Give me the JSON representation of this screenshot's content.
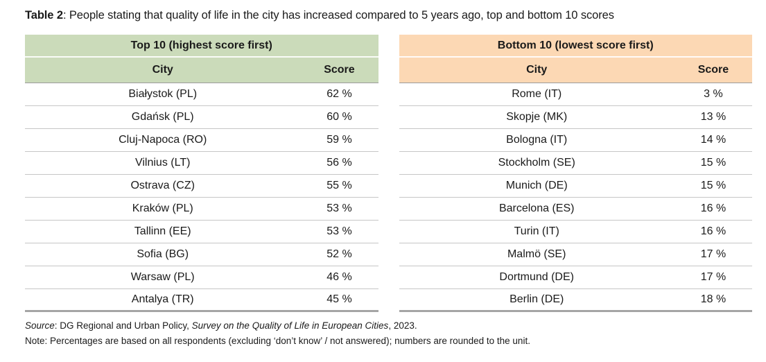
{
  "title": {
    "bold": "Table 2",
    "rest": ": People stating that quality of life in the city has increased compared to 5 years ago, top and bottom 10 scores"
  },
  "colors": {
    "top10_header": "#cbdbba",
    "bottom10_header": "#fcd8b4",
    "row_separator": "#c6c6c6",
    "table_bottom_border": "#a5a5a5"
  },
  "top10": {
    "caption": "Top 10 (highest score first)",
    "col_city": "City",
    "col_score": "Score",
    "rows": [
      {
        "city": "Białystok (PL)",
        "score": "62 %"
      },
      {
        "city": "Gdańsk (PL)",
        "score": "60 %"
      },
      {
        "city": "Cluj-Napoca (RO)",
        "score": "59 %"
      },
      {
        "city": "Vilnius (LT)",
        "score": "56 %"
      },
      {
        "city": "Ostrava (CZ)",
        "score": "55 %"
      },
      {
        "city": "Kraków (PL)",
        "score": "53 %"
      },
      {
        "city": "Tallinn (EE)",
        "score": "53 %"
      },
      {
        "city": "Sofia (BG)",
        "score": "52 %"
      },
      {
        "city": "Warsaw (PL)",
        "score": "46 %"
      },
      {
        "city": "Antalya (TR)",
        "score": "45 %"
      }
    ]
  },
  "bottom10": {
    "caption": "Bottom 10 (lowest score first)",
    "col_city": "City",
    "col_score": "Score",
    "rows": [
      {
        "city": "Rome (IT)",
        "score": "3 %"
      },
      {
        "city": "Skopje (MK)",
        "score": "13 %"
      },
      {
        "city": "Bologna (IT)",
        "score": "14 %"
      },
      {
        "city": "Stockholm (SE)",
        "score": "15 %"
      },
      {
        "city": "Munich (DE)",
        "score": "15 %"
      },
      {
        "city": "Barcelona (ES)",
        "score": "16 %"
      },
      {
        "city": "Turin (IT)",
        "score": "16 %"
      },
      {
        "city": "Malmö (SE)",
        "score": "17 %"
      },
      {
        "city": "Dortmund (DE)",
        "score": "17 %"
      },
      {
        "city": "Berlin (DE)",
        "score": "18 %"
      }
    ]
  },
  "footer": {
    "source_label": "Source",
    "source_text": ": DG Regional and Urban Policy, ",
    "source_survey": "Survey on the Quality of Life in European Cities",
    "source_year": ", 2023.",
    "note": "Note: Percentages are based on all respondents (excluding ‘don’t know’ / not answered); numbers are rounded to the unit."
  }
}
